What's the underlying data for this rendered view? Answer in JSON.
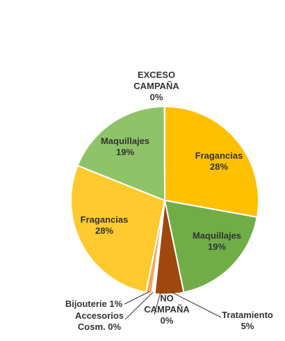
{
  "chart_data": {
    "type": "pie",
    "title": "",
    "legend": "none",
    "slices": [
      {
        "label_lines": [
          "Fragancias",
          "28%"
        ],
        "value": 28,
        "color": "#FFC000"
      },
      {
        "label_lines": [
          "Maquillajes",
          "19%"
        ],
        "value": 19,
        "color": "#70AD47"
      },
      {
        "label_lines": [
          "Tratamiento",
          "5%"
        ],
        "value": 5,
        "color": "#9E480E"
      },
      {
        "label_lines": [
          "NO",
          "CAMPAÑA",
          "0%"
        ],
        "value": 0.25,
        "color": "#C55A11"
      },
      {
        "label_lines": [
          "Accesorios",
          "Cosm. 0%"
        ],
        "value": 0.25,
        "color": "#ED7D31"
      },
      {
        "label_lines": [
          "Bijouterie 1%"
        ],
        "value": 1,
        "color": "#F4A460"
      },
      {
        "label_lines": [
          "Fragancias",
          "28%"
        ],
        "value": 28,
        "color": "#FFCA2E"
      },
      {
        "label_lines": [
          "Maquillajes",
          "19%"
        ],
        "value": 19,
        "color": "#8FC36A"
      },
      {
        "label_lines": [
          "EXCESO",
          "CAMPAÑA",
          "0%"
        ],
        "value": 0.05,
        "color": "#E2A200"
      }
    ]
  }
}
